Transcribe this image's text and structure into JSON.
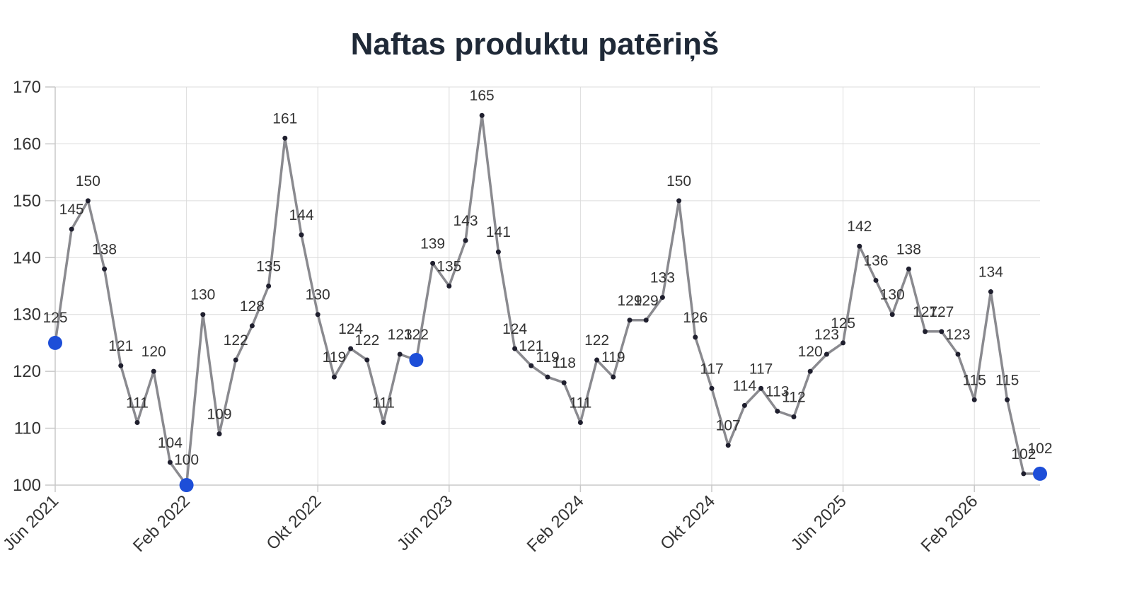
{
  "chart_data": {
    "type": "line",
    "title": "Naftas produktu patēriņš",
    "xlabel": "",
    "ylabel": "",
    "ylim": [
      100,
      170
    ],
    "yticks": [
      100,
      110,
      120,
      130,
      140,
      150,
      160,
      170
    ],
    "grid": true,
    "x": [
      "Jūn 2021",
      "Jūl 2021",
      "Aug 2021",
      "Sep 2021",
      "Okt 2021",
      "Nov 2021",
      "Dec 2021",
      "Jan 2022",
      "Feb 2022",
      "Mar 2022",
      "Apr 2022",
      "Mai 2022",
      "Jūn 2022",
      "Jūl 2022",
      "Aug 2022",
      "Sep 2022",
      "Okt 2022",
      "Nov 2022",
      "Dec 2022",
      "Jan 2023",
      "Feb 2023",
      "Mar 2023",
      "Apr 2023",
      "Mai 2023",
      "Jūn 2023",
      "Jūl 2023",
      "Aug 2023",
      "Sep 2023",
      "Okt 2023",
      "Nov 2023",
      "Dec 2023",
      "Jan 2024",
      "Feb 2024",
      "Mar 2024",
      "Apr 2024",
      "Mai 2024",
      "Jūn 2024",
      "Jūl 2024",
      "Aug 2024",
      "Sep 2024",
      "Okt 2024",
      "Nov 2024",
      "Dec 2024",
      "Jan 2025",
      "Feb 2025",
      "Mar 2025",
      "Apr 2025",
      "Mai 2025",
      "Jūn 2025",
      "Jūl 2025",
      "Aug 2025",
      "Sep 2025",
      "Okt 2025",
      "Nov 2025",
      "Dec 2025",
      "Jan 2026",
      "Feb 2026",
      "Mar 2026",
      "Apr 2026",
      "Mai 2026",
      "Jūn 2026"
    ],
    "xtick_labels": [
      "Jūn 2021",
      "Feb 2022",
      "Okt 2022",
      "Jūn 2023",
      "Feb 2024",
      "Okt 2024",
      "Jūn 2025",
      "Feb 2026"
    ],
    "series": [
      {
        "values": [
          125,
          145,
          150,
          138,
          121,
          111,
          120,
          104,
          100,
          130,
          109,
          122,
          128,
          135,
          161,
          144,
          130,
          119,
          124,
          122,
          111,
          123,
          122,
          139,
          135,
          143,
          165,
          141,
          124,
          121,
          119,
          118,
          111,
          122,
          119,
          129,
          129,
          133,
          150,
          126,
          117,
          107,
          114,
          117,
          113,
          112,
          120,
          123,
          125,
          142,
          136,
          130,
          138,
          127,
          127,
          123,
          115,
          134,
          115,
          102,
          102
        ],
        "highlighted_points": [
          "Jūn 2021",
          "Feb 2022",
          "Apr 2023",
          "Jūn 2026"
        ]
      }
    ],
    "colors": {
      "line": "#8a8a8f",
      "marker": "#1f1f2e",
      "highlight": "#1d4ed8"
    }
  }
}
